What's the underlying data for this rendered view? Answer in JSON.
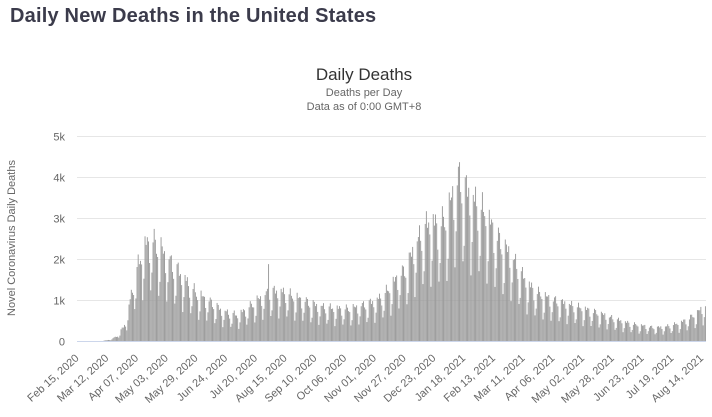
{
  "page": {
    "title": "Daily New Deaths in the United States"
  },
  "chart": {
    "title": "Daily Deaths",
    "subtitle1": "Deaths per Day",
    "subtitle2": "Data as of 0:00 GMT+8",
    "y_axis_title": "Novel Coronavirus Daily Deaths",
    "colors": {
      "bar": "#999999",
      "grid": "#e6e6e6",
      "axis_line": "#ccd6eb",
      "tick_label": "#666666",
      "title": "#333333",
      "subtitle": "#666666",
      "page_title": "#3b3b4b"
    }
  },
  "chart_data": {
    "type": "bar",
    "title": "Daily Deaths",
    "series_name": "Novel Coronavirus Daily Deaths",
    "ylabel": "Novel Coronavirus Daily Deaths",
    "yticks": [
      "0",
      "1k",
      "2k",
      "3k",
      "4k",
      "5k"
    ],
    "ylim": [
      0,
      5000
    ],
    "grid": true,
    "legend": false,
    "x_start_date": "Feb 15, 2020",
    "days": 550,
    "tick_interval_days": 26,
    "x_tick_labels": [
      "Feb 15, 2020",
      "Mar 12, 2020",
      "Apr 07, 2020",
      "May 03, 2020",
      "May 29, 2020",
      "Jun 24, 2020",
      "Jul 20, 2020",
      "Aug 15, 2020",
      "Sep 10, 2020",
      "Oct 06, 2020",
      "Nov 01, 2020",
      "Nov 27, 2020",
      "Dec 23, 2020",
      "Jan 18, 2021",
      "Feb 13, 2021",
      "Mar 11, 2021",
      "Apr 06, 2021",
      "May 02, 2021",
      "May 28, 2021",
      "Jun 23, 2021",
      "Jul 19, 2021",
      "Aug 14, 2021"
    ],
    "envelope_keypoints": [
      [
        0,
        0
      ],
      [
        14,
        1
      ],
      [
        21,
        3
      ],
      [
        28,
        25
      ],
      [
        35,
        110
      ],
      [
        42,
        380
      ],
      [
        49,
        1250
      ],
      [
        56,
        1900
      ],
      [
        63,
        2200
      ],
      [
        70,
        2075
      ],
      [
        77,
        1850
      ],
      [
        84,
        1620
      ],
      [
        91,
        1420
      ],
      [
        98,
        1200
      ],
      [
        105,
        1000
      ],
      [
        112,
        920
      ],
      [
        119,
        800
      ],
      [
        126,
        660
      ],
      [
        133,
        600
      ],
      [
        140,
        560
      ],
      [
        147,
        680
      ],
      [
        154,
        820
      ],
      [
        161,
        950
      ],
      [
        168,
        1060
      ],
      [
        175,
        1080
      ],
      [
        182,
        1040
      ],
      [
        189,
        960
      ],
      [
        196,
        900
      ],
      [
        203,
        830
      ],
      [
        210,
        760
      ],
      [
        217,
        730
      ],
      [
        224,
        710
      ],
      [
        231,
        700
      ],
      [
        238,
        700
      ],
      [
        245,
        740
      ],
      [
        252,
        800
      ],
      [
        259,
        850
      ],
      [
        266,
        960
      ],
      [
        273,
        1150
      ],
      [
        280,
        1400
      ],
      [
        287,
        1550
      ],
      [
        294,
        2000
      ],
      [
        301,
        2350
      ],
      [
        308,
        2600
      ],
      [
        315,
        2500
      ],
      [
        322,
        2650
      ],
      [
        329,
        3250
      ],
      [
        333,
        3550
      ],
      [
        336,
        3450
      ],
      [
        343,
        3150
      ],
      [
        350,
        2950
      ],
      [
        357,
        2750
      ],
      [
        364,
        2400
      ],
      [
        371,
        2100
      ],
      [
        378,
        1900
      ],
      [
        385,
        1600
      ],
      [
        392,
        1300
      ],
      [
        399,
        1100
      ],
      [
        406,
        1000
      ],
      [
        413,
        920
      ],
      [
        420,
        860
      ],
      [
        427,
        810
      ],
      [
        434,
        760
      ],
      [
        441,
        710
      ],
      [
        448,
        660
      ],
      [
        455,
        610
      ],
      [
        462,
        550
      ],
      [
        469,
        480
      ],
      [
        476,
        430
      ],
      [
        483,
        380
      ],
      [
        490,
        345
      ],
      [
        497,
        320
      ],
      [
        504,
        290
      ],
      [
        511,
        300
      ],
      [
        518,
        330
      ],
      [
        525,
        380
      ],
      [
        532,
        450
      ],
      [
        539,
        560
      ],
      [
        546,
        700
      ],
      [
        549,
        780
      ]
    ],
    "weekday_factors_sat_first": [
      0.92,
      0.52,
      0.72,
      1.18,
      1.25,
      1.22,
      1.12
    ],
    "noise": {
      "a1": 0.07,
      "p1": 2.17,
      "a2": 0.05,
      "p2": 0.9
    },
    "spikes": [
      [
        167,
        1870
      ]
    ]
  }
}
